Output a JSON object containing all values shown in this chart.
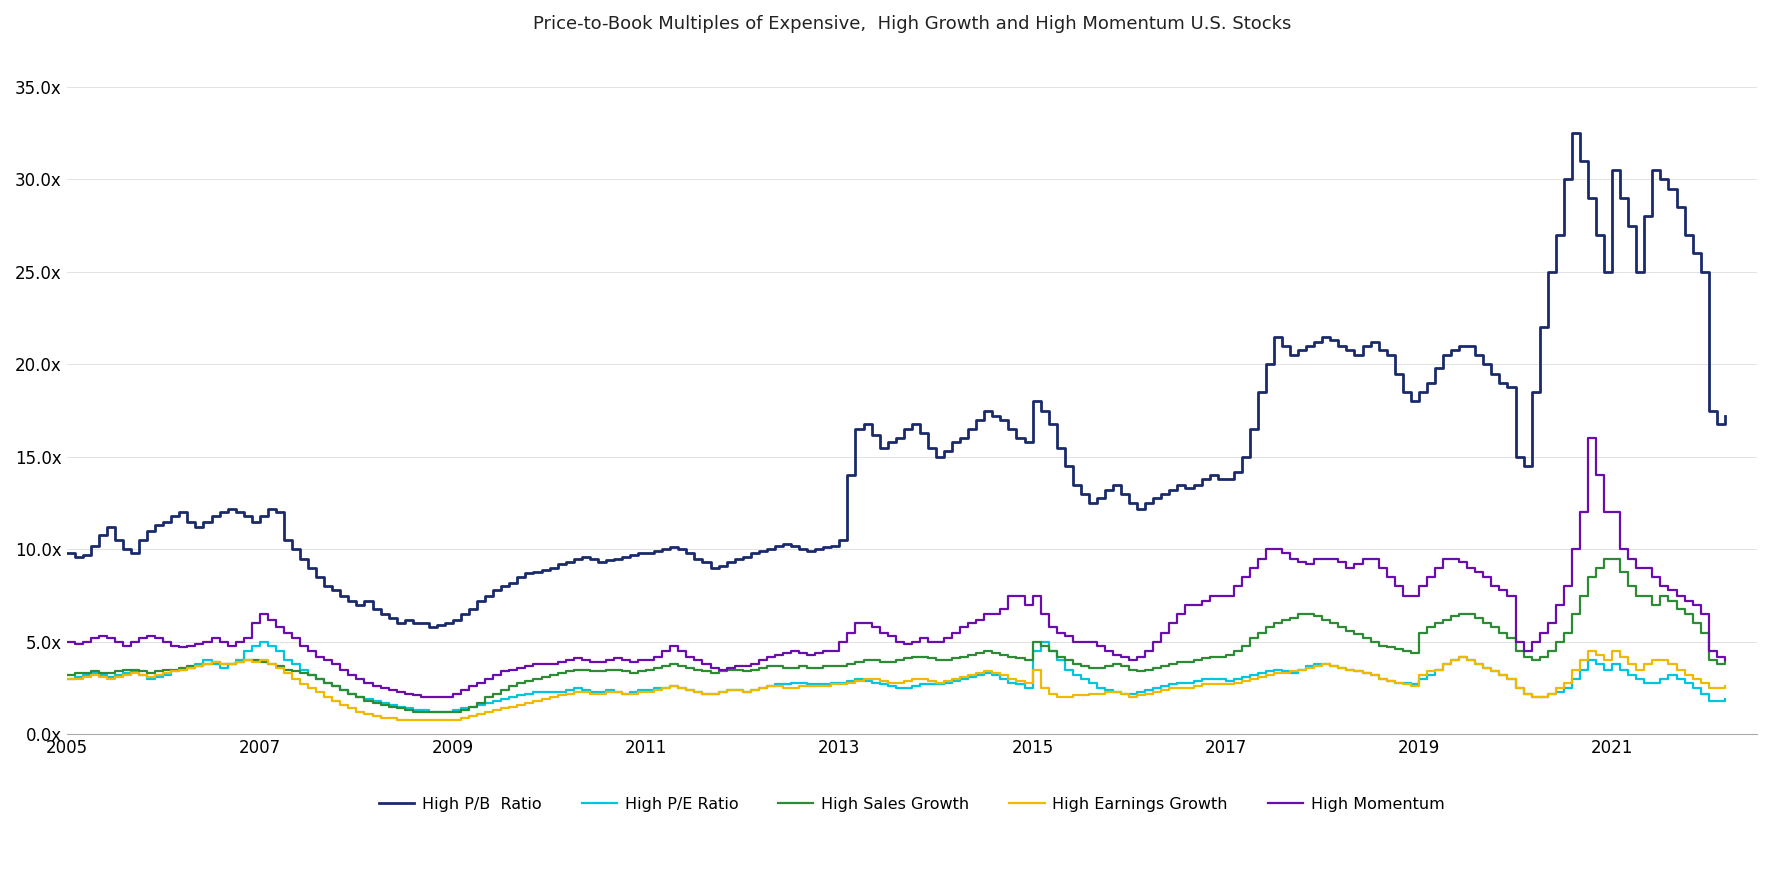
{
  "title": "Price-to-Book Multiples of Expensive,  High Growth and High Momentum U.S. Stocks",
  "title_fontsize": 13,
  "background_color": "#ffffff",
  "ylim": [
    0,
    37
  ],
  "yticks": [
    0.0,
    5.0,
    10.0,
    15.0,
    20.0,
    25.0,
    30.0,
    35.0
  ],
  "ytick_labels": [
    "0.0x",
    "5.0x",
    "10.0x",
    "15.0x",
    "20.0x",
    "25.0x",
    "30.0x",
    "35.0x"
  ],
  "xtick_labels": [
    "2005",
    "2007",
    "2009",
    "2011",
    "2013",
    "2015",
    "2017",
    "2019",
    "2021"
  ],
  "series_colors": {
    "high_pb": "#1b2a6b",
    "high_pe": "#00c5e0",
    "high_sales": "#2e8b35",
    "high_earnings": "#f0b800",
    "high_momentum": "#6a0dad"
  },
  "legend_labels": [
    "High P/B  Ratio",
    "High P/E Ratio",
    "High Sales Growth",
    "High Earnings Growth",
    "High Momentum"
  ],
  "line_width": 1.6,
  "dates": [
    2005.0,
    2005.083,
    2005.167,
    2005.25,
    2005.333,
    2005.417,
    2005.5,
    2005.583,
    2005.667,
    2005.75,
    2005.833,
    2005.917,
    2006.0,
    2006.083,
    2006.167,
    2006.25,
    2006.333,
    2006.417,
    2006.5,
    2006.583,
    2006.667,
    2006.75,
    2006.833,
    2006.917,
    2007.0,
    2007.083,
    2007.167,
    2007.25,
    2007.333,
    2007.417,
    2007.5,
    2007.583,
    2007.667,
    2007.75,
    2007.833,
    2007.917,
    2008.0,
    2008.083,
    2008.167,
    2008.25,
    2008.333,
    2008.417,
    2008.5,
    2008.583,
    2008.667,
    2008.75,
    2008.833,
    2008.917,
    2009.0,
    2009.083,
    2009.167,
    2009.25,
    2009.333,
    2009.417,
    2009.5,
    2009.583,
    2009.667,
    2009.75,
    2009.833,
    2009.917,
    2010.0,
    2010.083,
    2010.167,
    2010.25,
    2010.333,
    2010.417,
    2010.5,
    2010.583,
    2010.667,
    2010.75,
    2010.833,
    2010.917,
    2011.0,
    2011.083,
    2011.167,
    2011.25,
    2011.333,
    2011.417,
    2011.5,
    2011.583,
    2011.667,
    2011.75,
    2011.833,
    2011.917,
    2012.0,
    2012.083,
    2012.167,
    2012.25,
    2012.333,
    2012.417,
    2012.5,
    2012.583,
    2012.667,
    2012.75,
    2012.833,
    2012.917,
    2013.0,
    2013.083,
    2013.167,
    2013.25,
    2013.333,
    2013.417,
    2013.5,
    2013.583,
    2013.667,
    2013.75,
    2013.833,
    2013.917,
    2014.0,
    2014.083,
    2014.167,
    2014.25,
    2014.333,
    2014.417,
    2014.5,
    2014.583,
    2014.667,
    2014.75,
    2014.833,
    2014.917,
    2015.0,
    2015.083,
    2015.167,
    2015.25,
    2015.333,
    2015.417,
    2015.5,
    2015.583,
    2015.667,
    2015.75,
    2015.833,
    2015.917,
    2016.0,
    2016.083,
    2016.167,
    2016.25,
    2016.333,
    2016.417,
    2016.5,
    2016.583,
    2016.667,
    2016.75,
    2016.833,
    2016.917,
    2017.0,
    2017.083,
    2017.167,
    2017.25,
    2017.333,
    2017.417,
    2017.5,
    2017.583,
    2017.667,
    2017.75,
    2017.833,
    2017.917,
    2018.0,
    2018.083,
    2018.167,
    2018.25,
    2018.333,
    2018.417,
    2018.5,
    2018.583,
    2018.667,
    2018.75,
    2018.833,
    2018.917,
    2019.0,
    2019.083,
    2019.167,
    2019.25,
    2019.333,
    2019.417,
    2019.5,
    2019.583,
    2019.667,
    2019.75,
    2019.833,
    2019.917,
    2020.0,
    2020.083,
    2020.167,
    2020.25,
    2020.333,
    2020.417,
    2020.5,
    2020.583,
    2020.667,
    2020.75,
    2020.833,
    2020.917,
    2021.0,
    2021.083,
    2021.167,
    2021.25,
    2021.333,
    2021.417,
    2021.5,
    2021.583,
    2021.667,
    2021.75,
    2021.833,
    2021.917,
    2022.0,
    2022.083,
    2022.167
  ],
  "high_pb": [
    9.8,
    9.6,
    9.7,
    10.2,
    10.8,
    11.2,
    10.5,
    10.0,
    9.8,
    10.5,
    11.0,
    11.3,
    11.5,
    11.8,
    12.0,
    11.5,
    11.2,
    11.5,
    11.8,
    12.0,
    12.2,
    12.0,
    11.8,
    11.5,
    11.8,
    12.2,
    12.0,
    10.5,
    10.0,
    9.5,
    9.0,
    8.5,
    8.0,
    7.8,
    7.5,
    7.2,
    7.0,
    7.2,
    6.8,
    6.5,
    6.3,
    6.0,
    6.2,
    6.0,
    6.0,
    5.8,
    5.9,
    6.0,
    6.2,
    6.5,
    6.8,
    7.2,
    7.5,
    7.8,
    8.0,
    8.2,
    8.5,
    8.7,
    8.8,
    8.9,
    9.0,
    9.2,
    9.3,
    9.5,
    9.6,
    9.5,
    9.3,
    9.4,
    9.5,
    9.6,
    9.7,
    9.8,
    9.8,
    9.9,
    10.0,
    10.1,
    10.0,
    9.8,
    9.5,
    9.3,
    9.0,
    9.1,
    9.3,
    9.5,
    9.6,
    9.8,
    9.9,
    10.0,
    10.2,
    10.3,
    10.2,
    10.0,
    9.9,
    10.0,
    10.1,
    10.2,
    10.5,
    14.0,
    16.5,
    16.8,
    16.2,
    15.5,
    15.8,
    16.0,
    16.5,
    16.8,
    16.3,
    15.5,
    15.0,
    15.3,
    15.8,
    16.0,
    16.5,
    17.0,
    17.5,
    17.2,
    17.0,
    16.5,
    16.0,
    15.8,
    18.0,
    17.5,
    16.8,
    15.5,
    14.5,
    13.5,
    13.0,
    12.5,
    12.8,
    13.2,
    13.5,
    13.0,
    12.5,
    12.2,
    12.5,
    12.8,
    13.0,
    13.2,
    13.5,
    13.3,
    13.5,
    13.8,
    14.0,
    13.8,
    13.8,
    14.2,
    15.0,
    16.5,
    18.5,
    20.0,
    21.5,
    21.0,
    20.5,
    20.8,
    21.0,
    21.2,
    21.5,
    21.3,
    21.0,
    20.8,
    20.5,
    21.0,
    21.2,
    20.8,
    20.5,
    19.5,
    18.5,
    18.0,
    18.5,
    19.0,
    19.8,
    20.5,
    20.8,
    21.0,
    21.0,
    20.5,
    20.0,
    19.5,
    19.0,
    18.8,
    15.0,
    14.5,
    18.5,
    22.0,
    25.0,
    27.0,
    30.0,
    32.5,
    31.0,
    29.0,
    27.0,
    25.0,
    30.5,
    29.0,
    27.5,
    25.0,
    28.0,
    30.5,
    30.0,
    29.5,
    28.5,
    27.0,
    26.0,
    25.0,
    17.5,
    16.8,
    17.2
  ],
  "high_pe": [
    3.0,
    3.1,
    3.2,
    3.3,
    3.2,
    3.1,
    3.2,
    3.3,
    3.4,
    3.2,
    3.0,
    3.1,
    3.2,
    3.4,
    3.5,
    3.6,
    3.8,
    4.0,
    3.8,
    3.6,
    3.8,
    4.0,
    4.5,
    4.8,
    5.0,
    4.8,
    4.5,
    4.0,
    3.8,
    3.5,
    3.2,
    3.0,
    2.8,
    2.6,
    2.4,
    2.2,
    2.0,
    1.9,
    1.8,
    1.7,
    1.6,
    1.5,
    1.4,
    1.3,
    1.3,
    1.2,
    1.2,
    1.2,
    1.3,
    1.4,
    1.5,
    1.6,
    1.7,
    1.8,
    1.9,
    2.0,
    2.1,
    2.2,
    2.3,
    2.3,
    2.3,
    2.3,
    2.4,
    2.5,
    2.4,
    2.3,
    2.3,
    2.4,
    2.3,
    2.2,
    2.3,
    2.4,
    2.4,
    2.5,
    2.5,
    2.6,
    2.5,
    2.4,
    2.3,
    2.2,
    2.2,
    2.3,
    2.4,
    2.4,
    2.3,
    2.4,
    2.5,
    2.6,
    2.7,
    2.7,
    2.8,
    2.8,
    2.7,
    2.7,
    2.7,
    2.8,
    2.8,
    2.9,
    3.0,
    2.9,
    2.8,
    2.7,
    2.6,
    2.5,
    2.5,
    2.6,
    2.7,
    2.7,
    2.7,
    2.8,
    2.9,
    3.0,
    3.1,
    3.2,
    3.3,
    3.2,
    3.0,
    2.8,
    2.7,
    2.5,
    4.5,
    5.0,
    4.5,
    4.0,
    3.5,
    3.2,
    3.0,
    2.8,
    2.5,
    2.4,
    2.3,
    2.2,
    2.2,
    2.3,
    2.4,
    2.5,
    2.6,
    2.7,
    2.8,
    2.8,
    2.9,
    3.0,
    3.0,
    3.0,
    2.9,
    3.0,
    3.1,
    3.2,
    3.3,
    3.4,
    3.5,
    3.4,
    3.3,
    3.5,
    3.7,
    3.8,
    3.8,
    3.7,
    3.6,
    3.5,
    3.4,
    3.3,
    3.2,
    3.0,
    2.9,
    2.8,
    2.8,
    2.7,
    3.0,
    3.2,
    3.5,
    3.8,
    4.0,
    4.2,
    4.0,
    3.8,
    3.6,
    3.4,
    3.2,
    3.0,
    2.5,
    2.2,
    2.0,
    2.0,
    2.2,
    2.3,
    2.5,
    3.0,
    3.5,
    4.0,
    3.8,
    3.5,
    3.8,
    3.5,
    3.2,
    3.0,
    2.8,
    2.8,
    3.0,
    3.2,
    3.0,
    2.8,
    2.5,
    2.2,
    1.8,
    1.8,
    1.9
  ],
  "high_sales": [
    3.2,
    3.3,
    3.3,
    3.4,
    3.3,
    3.3,
    3.4,
    3.5,
    3.5,
    3.4,
    3.3,
    3.4,
    3.5,
    3.5,
    3.6,
    3.7,
    3.7,
    3.8,
    3.9,
    3.8,
    3.8,
    3.9,
    4.0,
    4.0,
    3.9,
    3.8,
    3.7,
    3.5,
    3.4,
    3.3,
    3.2,
    3.0,
    2.8,
    2.6,
    2.4,
    2.2,
    2.0,
    1.8,
    1.7,
    1.6,
    1.5,
    1.4,
    1.3,
    1.2,
    1.2,
    1.2,
    1.2,
    1.2,
    1.2,
    1.3,
    1.5,
    1.7,
    2.0,
    2.2,
    2.4,
    2.6,
    2.8,
    2.9,
    3.0,
    3.1,
    3.2,
    3.3,
    3.4,
    3.5,
    3.5,
    3.4,
    3.4,
    3.5,
    3.5,
    3.4,
    3.3,
    3.4,
    3.5,
    3.6,
    3.7,
    3.8,
    3.7,
    3.6,
    3.5,
    3.4,
    3.3,
    3.4,
    3.5,
    3.5,
    3.4,
    3.5,
    3.6,
    3.7,
    3.7,
    3.6,
    3.6,
    3.7,
    3.6,
    3.6,
    3.7,
    3.7,
    3.7,
    3.8,
    3.9,
    4.0,
    4.0,
    3.9,
    3.9,
    4.0,
    4.1,
    4.2,
    4.2,
    4.1,
    4.0,
    4.0,
    4.1,
    4.2,
    4.3,
    4.4,
    4.5,
    4.4,
    4.3,
    4.2,
    4.1,
    4.0,
    5.0,
    4.8,
    4.5,
    4.2,
    4.0,
    3.8,
    3.7,
    3.6,
    3.6,
    3.7,
    3.8,
    3.7,
    3.5,
    3.4,
    3.5,
    3.6,
    3.7,
    3.8,
    3.9,
    3.9,
    4.0,
    4.1,
    4.2,
    4.2,
    4.3,
    4.5,
    4.8,
    5.2,
    5.5,
    5.8,
    6.0,
    6.2,
    6.3,
    6.5,
    6.5,
    6.4,
    6.2,
    6.0,
    5.8,
    5.6,
    5.4,
    5.2,
    5.0,
    4.8,
    4.7,
    4.6,
    4.5,
    4.4,
    5.5,
    5.8,
    6.0,
    6.2,
    6.4,
    6.5,
    6.5,
    6.3,
    6.0,
    5.8,
    5.5,
    5.2,
    4.5,
    4.2,
    4.0,
    4.2,
    4.5,
    5.0,
    5.5,
    6.5,
    7.5,
    8.5,
    9.0,
    9.5,
    9.5,
    8.8,
    8.0,
    7.5,
    7.5,
    7.0,
    7.5,
    7.2,
    6.8,
    6.5,
    6.0,
    5.5,
    4.0,
    3.8,
    3.9
  ],
  "high_earnings": [
    3.0,
    3.0,
    3.1,
    3.2,
    3.1,
    3.0,
    3.1,
    3.2,
    3.3,
    3.2,
    3.1,
    3.2,
    3.3,
    3.4,
    3.5,
    3.6,
    3.7,
    3.8,
    3.9,
    3.8,
    3.8,
    3.9,
    4.0,
    3.9,
    4.0,
    3.8,
    3.6,
    3.3,
    3.0,
    2.7,
    2.5,
    2.3,
    2.0,
    1.8,
    1.6,
    1.4,
    1.2,
    1.1,
    1.0,
    0.9,
    0.9,
    0.8,
    0.8,
    0.8,
    0.8,
    0.8,
    0.8,
    0.8,
    0.8,
    0.9,
    1.0,
    1.1,
    1.2,
    1.3,
    1.4,
    1.5,
    1.6,
    1.7,
    1.8,
    1.9,
    2.0,
    2.1,
    2.2,
    2.3,
    2.3,
    2.2,
    2.2,
    2.3,
    2.3,
    2.2,
    2.2,
    2.3,
    2.3,
    2.4,
    2.5,
    2.6,
    2.5,
    2.4,
    2.3,
    2.2,
    2.2,
    2.3,
    2.4,
    2.4,
    2.3,
    2.4,
    2.5,
    2.6,
    2.6,
    2.5,
    2.5,
    2.6,
    2.6,
    2.6,
    2.6,
    2.7,
    2.7,
    2.8,
    2.9,
    3.0,
    3.0,
    2.9,
    2.8,
    2.8,
    2.9,
    3.0,
    3.0,
    2.9,
    2.8,
    2.9,
    3.0,
    3.1,
    3.2,
    3.3,
    3.4,
    3.3,
    3.2,
    3.0,
    2.9,
    2.8,
    3.5,
    2.5,
    2.2,
    2.0,
    2.0,
    2.1,
    2.1,
    2.2,
    2.2,
    2.3,
    2.3,
    2.2,
    2.0,
    2.1,
    2.2,
    2.3,
    2.4,
    2.5,
    2.5,
    2.5,
    2.6,
    2.7,
    2.7,
    2.7,
    2.7,
    2.8,
    2.9,
    3.0,
    3.1,
    3.2,
    3.3,
    3.3,
    3.4,
    3.5,
    3.6,
    3.7,
    3.8,
    3.7,
    3.6,
    3.5,
    3.4,
    3.3,
    3.2,
    3.0,
    2.9,
    2.8,
    2.7,
    2.6,
    3.2,
    3.4,
    3.5,
    3.8,
    4.0,
    4.2,
    4.0,
    3.8,
    3.6,
    3.4,
    3.2,
    3.0,
    2.5,
    2.2,
    2.0,
    2.0,
    2.2,
    2.5,
    2.8,
    3.5,
    4.0,
    4.5,
    4.3,
    4.0,
    4.5,
    4.2,
    3.8,
    3.5,
    3.8,
    4.0,
    4.0,
    3.8,
    3.5,
    3.2,
    3.0,
    2.8,
    2.5,
    2.5,
    2.6
  ],
  "high_momentum": [
    5.0,
    4.9,
    5.0,
    5.2,
    5.3,
    5.2,
    5.0,
    4.8,
    5.0,
    5.2,
    5.3,
    5.2,
    5.0,
    4.8,
    4.7,
    4.8,
    4.9,
    5.0,
    5.2,
    5.0,
    4.8,
    5.0,
    5.2,
    6.0,
    6.5,
    6.2,
    5.8,
    5.5,
    5.2,
    4.8,
    4.5,
    4.2,
    4.0,
    3.8,
    3.5,
    3.2,
    3.0,
    2.8,
    2.6,
    2.5,
    2.4,
    2.3,
    2.2,
    2.1,
    2.0,
    2.0,
    2.0,
    2.0,
    2.2,
    2.4,
    2.6,
    2.8,
    3.0,
    3.2,
    3.4,
    3.5,
    3.6,
    3.7,
    3.8,
    3.8,
    3.8,
    3.9,
    4.0,
    4.1,
    4.0,
    3.9,
    3.9,
    4.0,
    4.1,
    4.0,
    3.9,
    4.0,
    4.0,
    4.2,
    4.5,
    4.8,
    4.5,
    4.2,
    4.0,
    3.8,
    3.6,
    3.5,
    3.6,
    3.7,
    3.7,
    3.8,
    4.0,
    4.2,
    4.3,
    4.4,
    4.5,
    4.4,
    4.3,
    4.4,
    4.5,
    4.5,
    5.0,
    5.5,
    6.0,
    6.0,
    5.8,
    5.5,
    5.3,
    5.0,
    4.9,
    5.0,
    5.2,
    5.0,
    5.0,
    5.2,
    5.5,
    5.8,
    6.0,
    6.2,
    6.5,
    6.5,
    6.8,
    7.5,
    7.5,
    7.0,
    7.5,
    6.5,
    5.8,
    5.5,
    5.3,
    5.0,
    5.0,
    5.0,
    4.8,
    4.5,
    4.3,
    4.2,
    4.0,
    4.2,
    4.5,
    5.0,
    5.5,
    6.0,
    6.5,
    7.0,
    7.0,
    7.2,
    7.5,
    7.5,
    7.5,
    8.0,
    8.5,
    9.0,
    9.5,
    10.0,
    10.0,
    9.8,
    9.5,
    9.3,
    9.2,
    9.5,
    9.5,
    9.5,
    9.3,
    9.0,
    9.2,
    9.5,
    9.5,
    9.0,
    8.5,
    8.0,
    7.5,
    7.5,
    8.0,
    8.5,
    9.0,
    9.5,
    9.5,
    9.3,
    9.0,
    8.8,
    8.5,
    8.0,
    7.8,
    7.5,
    5.0,
    4.5,
    5.0,
    5.5,
    6.0,
    7.0,
    8.0,
    10.0,
    12.0,
    16.0,
    14.0,
    12.0,
    12.0,
    10.0,
    9.5,
    9.0,
    9.0,
    8.5,
    8.0,
    7.8,
    7.5,
    7.2,
    7.0,
    6.5,
    4.5,
    4.2,
    4.0
  ]
}
